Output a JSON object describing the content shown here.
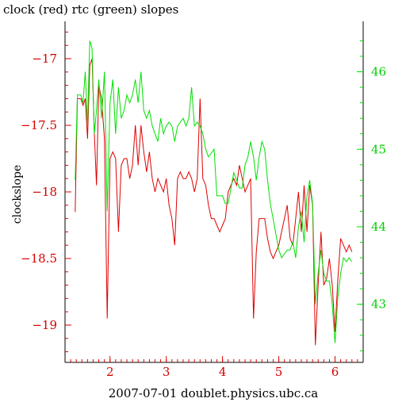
{
  "chart_data": {
    "type": "line",
    "title": "clock (red) rtc (green) slopes",
    "xlabel": "2007-07-01 doublet.physics.ubc.ca",
    "ylabel": "clockslope",
    "x_ticks": [
      "2",
      "3",
      "4",
      "5",
      "6"
    ],
    "y_left_ticks": [
      "-17",
      "-17.5",
      "-18",
      "-18.5",
      "-19"
    ],
    "y_right_ticks": [
      "46",
      "45",
      "44",
      "43"
    ],
    "xlim": [
      1.2,
      6.5
    ],
    "ylim_left": [
      -19.28,
      -16.72
    ],
    "ylim_right": [
      42.25,
      46.65
    ],
    "colors": {
      "clock": "#e00000",
      "rtc": "#00e000",
      "axes": "#000000"
    },
    "series": [
      {
        "name": "clock (red)",
        "axis": "left",
        "x": [
          1.38,
          1.42,
          1.48,
          1.52,
          1.56,
          1.6,
          1.64,
          1.68,
          1.72,
          1.76,
          1.8,
          1.85,
          1.9,
          1.95,
          2.0,
          2.05,
          2.1,
          2.15,
          2.2,
          2.25,
          2.3,
          2.35,
          2.4,
          2.45,
          2.5,
          2.55,
          2.6,
          2.65,
          2.7,
          2.75,
          2.8,
          2.85,
          2.9,
          2.95,
          3.0,
          3.05,
          3.1,
          3.15,
          3.2,
          3.25,
          3.3,
          3.35,
          3.4,
          3.45,
          3.5,
          3.55,
          3.6,
          3.65,
          3.7,
          3.75,
          3.8,
          3.85,
          3.9,
          3.95,
          4.0,
          4.05,
          4.1,
          4.15,
          4.2,
          4.25,
          4.3,
          4.35,
          4.4,
          4.45,
          4.5,
          4.55,
          4.6,
          4.65,
          4.7,
          4.75,
          4.8,
          4.85,
          4.9,
          4.95,
          5.0,
          5.05,
          5.1,
          5.15,
          5.2,
          5.25,
          5.3,
          5.35,
          5.4,
          5.45,
          5.5,
          5.55,
          5.6,
          5.65,
          5.7,
          5.75,
          5.8,
          5.85,
          5.9,
          5.95,
          6.0,
          6.05,
          6.1,
          6.15,
          6.2,
          6.25,
          6.3
        ],
        "values": [
          -18.15,
          -17.3,
          -17.3,
          -17.35,
          -17.3,
          -17.6,
          -17.05,
          -17.0,
          -17.55,
          -17.95,
          -17.2,
          -17.3,
          -17.6,
          -18.95,
          -17.75,
          -17.7,
          -17.75,
          -18.3,
          -17.8,
          -17.75,
          -17.75,
          -17.9,
          -17.8,
          -17.5,
          -17.8,
          -17.5,
          -17.7,
          -17.85,
          -17.7,
          -17.9,
          -18.0,
          -17.9,
          -17.95,
          -18.0,
          -17.9,
          -18.1,
          -18.2,
          -18.4,
          -17.9,
          -17.85,
          -17.9,
          -17.9,
          -17.85,
          -17.9,
          -18.0,
          -17.9,
          -17.3,
          -17.9,
          -17.95,
          -18.1,
          -18.2,
          -18.2,
          -18.25,
          -18.3,
          -18.25,
          -18.2,
          -18.0,
          -17.95,
          -17.9,
          -17.95,
          -17.8,
          -17.9,
          -18.0,
          -17.95,
          -17.9,
          -18.95,
          -18.45,
          -18.2,
          -18.2,
          -18.2,
          -18.35,
          -18.45,
          -18.5,
          -18.45,
          -18.4,
          -18.3,
          -18.2,
          -18.1,
          -18.35,
          -18.4,
          -18.2,
          -18.0,
          -18.3,
          -17.95,
          -18.3,
          -17.95,
          -18.1,
          -19.15,
          -18.7,
          -18.3,
          -18.7,
          -18.65,
          -18.5,
          -18.7,
          -19.05,
          -18.65,
          -18.35,
          -18.4,
          -18.45,
          -18.4,
          -18.45
        ]
      },
      {
        "name": "rtc (green)",
        "axis": "right",
        "x": [
          1.38,
          1.42,
          1.48,
          1.52,
          1.56,
          1.6,
          1.64,
          1.68,
          1.72,
          1.76,
          1.8,
          1.85,
          1.9,
          1.95,
          2.0,
          2.05,
          2.1,
          2.15,
          2.2,
          2.25,
          2.3,
          2.35,
          2.4,
          2.45,
          2.5,
          2.55,
          2.6,
          2.65,
          2.7,
          2.75,
          2.8,
          2.85,
          2.9,
          2.95,
          3.0,
          3.05,
          3.1,
          3.15,
          3.2,
          3.25,
          3.3,
          3.35,
          3.4,
          3.45,
          3.5,
          3.55,
          3.6,
          3.65,
          3.7,
          3.75,
          3.8,
          3.85,
          3.9,
          3.95,
          4.0,
          4.05,
          4.1,
          4.15,
          4.2,
          4.25,
          4.3,
          4.35,
          4.4,
          4.45,
          4.5,
          4.55,
          4.6,
          4.65,
          4.7,
          4.75,
          4.8,
          4.85,
          4.9,
          4.95,
          5.0,
          5.05,
          5.1,
          5.15,
          5.2,
          5.25,
          5.3,
          5.35,
          5.4,
          5.45,
          5.5,
          5.55,
          5.6,
          5.65,
          5.7,
          5.75,
          5.8,
          5.85,
          5.9,
          5.95,
          6.0,
          6.05,
          6.1,
          6.15,
          6.2,
          6.25,
          6.3
        ],
        "values": [
          44.6,
          45.7,
          45.7,
          45.6,
          46.0,
          45.3,
          46.4,
          46.3,
          45.2,
          45.5,
          45.9,
          45.4,
          46.0,
          44.2,
          45.6,
          45.9,
          45.2,
          45.8,
          45.4,
          45.5,
          45.7,
          45.6,
          45.7,
          45.9,
          45.6,
          46.0,
          45.5,
          45.4,
          45.5,
          45.3,
          45.2,
          45.1,
          45.4,
          45.2,
          45.3,
          45.35,
          45.3,
          45.1,
          45.3,
          45.35,
          45.4,
          45.3,
          45.4,
          45.8,
          45.3,
          45.35,
          45.3,
          45.2,
          45.0,
          44.9,
          44.95,
          45.0,
          44.4,
          44.4,
          44.4,
          44.3,
          44.3,
          44.5,
          44.7,
          44.6,
          44.5,
          44.5,
          44.8,
          44.9,
          45.1,
          44.9,
          44.6,
          44.9,
          45.1,
          45.0,
          44.6,
          44.3,
          44.1,
          43.9,
          43.7,
          43.6,
          43.65,
          43.7,
          43.7,
          43.8,
          43.6,
          44.0,
          44.2,
          43.8,
          44.4,
          44.6,
          44.3,
          43.0,
          43.4,
          43.7,
          43.4,
          43.3,
          43.3,
          43.0,
          42.5,
          43.1,
          43.4,
          43.6,
          43.55,
          43.6,
          43.55
        ]
      }
    ]
  }
}
